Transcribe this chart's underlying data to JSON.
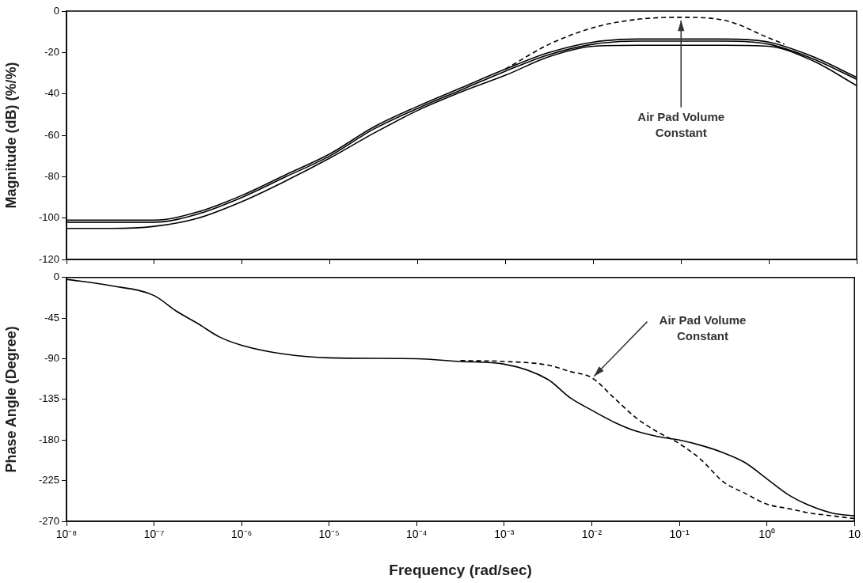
{
  "chart_data": [
    {
      "type": "line",
      "ylabel": "Magnitude (dB) (%/%)",
      "log": "x",
      "grid": false,
      "legend": false,
      "marker": "none",
      "tick_labels": "y",
      "xlim": [
        1e-08,
        10
      ],
      "xticks": [
        {
          "value": 1e-08,
          "label": null
        },
        {
          "value": 1e-07,
          "label": null
        },
        {
          "value": 1e-06,
          "label": null
        },
        {
          "value": 1e-05,
          "label": null
        },
        {
          "value": 0.0001,
          "label": null
        },
        {
          "value": 0.001,
          "label": null
        },
        {
          "value": 0.01,
          "label": null
        },
        {
          "value": 0.1,
          "label": null
        },
        {
          "value": 1,
          "label": null
        },
        {
          "value": 10,
          "label": null
        }
      ],
      "ylim": [
        -120,
        0
      ],
      "yticks": [
        -120,
        -100,
        -80,
        -60,
        -40,
        -20,
        0
      ],
      "x": [
        1e-08,
        3.16e-08,
        1e-07,
        3.16e-07,
        1e-06,
        3.16e-06,
        1e-05,
        3.16e-05,
        0.0001,
        0.000316,
        0.001,
        0.00316,
        0.01,
        0.0316,
        0.1,
        0.316,
        1,
        3.16,
        10
      ],
      "series": [
        {
          "color": "#000000",
          "line_style": "solid",
          "values": [
            -101,
            -101,
            -101,
            -97,
            -89,
            -79,
            -69,
            -56,
            -46,
            -37,
            -28,
            -20,
            -15,
            -13.5,
            -13.5,
            -13.5,
            -15,
            -22,
            -32
          ]
        },
        {
          "color": "#000000",
          "line_style": "solid",
          "values": [
            -102,
            -102,
            -102,
            -98,
            -90,
            -80,
            -70,
            -57,
            -47,
            -38,
            -29,
            -21,
            -16,
            -14.5,
            -14.5,
            -14.5,
            -16,
            -23,
            -33
          ]
        },
        {
          "color": "#000000",
          "line_style": "solid",
          "values": [
            -105,
            -105,
            -104,
            -100,
            -92,
            -82,
            -71,
            -59,
            -48,
            -39,
            -31,
            -22,
            -17,
            -16.5,
            -16.5,
            -16.5,
            -17,
            -24,
            -36
          ]
        },
        {
          "color": "#000000",
          "line_style": "dashed",
          "x": [
            0.001,
            0.00316,
            0.01,
            0.0316,
            0.1,
            0.316,
            1,
            1.5
          ],
          "values": [
            -28,
            -16,
            -8,
            -4,
            -3,
            -4.5,
            -13,
            -16
          ]
        }
      ],
      "annotations": [
        {
          "text": "Air Pad Volume Constant",
          "x": 0.1,
          "y": -3
        }
      ]
    },
    {
      "type": "line",
      "ylabel": "Phase Angle (Degree)",
      "xlabel": "Frequency (rad/sec)",
      "log": "x",
      "grid": false,
      "legend": false,
      "marker": "none",
      "xlim": [
        1e-08,
        10
      ],
      "xticks": [
        {
          "value": 1e-08,
          "label": "10⁻⁸"
        },
        {
          "value": 1e-07,
          "label": "10⁻⁷"
        },
        {
          "value": 1e-06,
          "label": "10⁻⁶"
        },
        {
          "value": 1e-05,
          "label": "10⁻⁵"
        },
        {
          "value": 0.0001,
          "label": "10⁻⁴"
        },
        {
          "value": 0.001,
          "label": "10⁻³"
        },
        {
          "value": 0.01,
          "label": "10⁻²"
        },
        {
          "value": 0.1,
          "label": "10⁻¹"
        },
        {
          "value": 1,
          "label": "10⁰"
        },
        10
      ],
      "ylim": [
        -270,
        0
      ],
      "yticks": [
        -270,
        -225,
        -180,
        -135,
        -90,
        -45,
        0
      ],
      "x": [
        1e-08,
        3.16e-08,
        1e-07,
        1.78e-07,
        3.16e-07,
        5.62e-07,
        1e-06,
        3.16e-06,
        1e-05,
        0.0001,
        0.000316,
        0.001,
        0.00316,
        0.00562,
        0.01,
        0.0178,
        0.0316,
        0.0562,
        0.1,
        0.178,
        0.316,
        0.562,
        1,
        1.78,
        3.16,
        5.62,
        10
      ],
      "series": [
        {
          "color": "#000000",
          "line_style": "solid",
          "values": [
            -2,
            -9,
            -20,
            -37,
            -51,
            -66,
            -75,
            -85,
            -89,
            -90,
            -93,
            -96,
            -113,
            -133,
            -147,
            -160,
            -170,
            -176,
            -180,
            -186,
            -194,
            -205,
            -223,
            -241,
            -253,
            -261,
            -264
          ]
        },
        {
          "color": "#000000",
          "line_style": "dashed",
          "x": [
            0.000316,
            0.001,
            0.00316,
            0.00562,
            0.01,
            0.0178,
            0.0316,
            0.0562,
            0.1,
            0.178,
            0.316,
            0.562,
            1,
            1.78,
            3.16,
            5.62,
            10
          ],
          "values": [
            -92,
            -93,
            -97,
            -104,
            -111,
            -133,
            -155,
            -171,
            -184,
            -202,
            -226,
            -239,
            -251,
            -256,
            -261,
            -264,
            -267
          ]
        }
      ],
      "annotations": [
        {
          "text": "Air Pad Volume Constant",
          "x": 0.01,
          "y": -112
        }
      ]
    }
  ]
}
